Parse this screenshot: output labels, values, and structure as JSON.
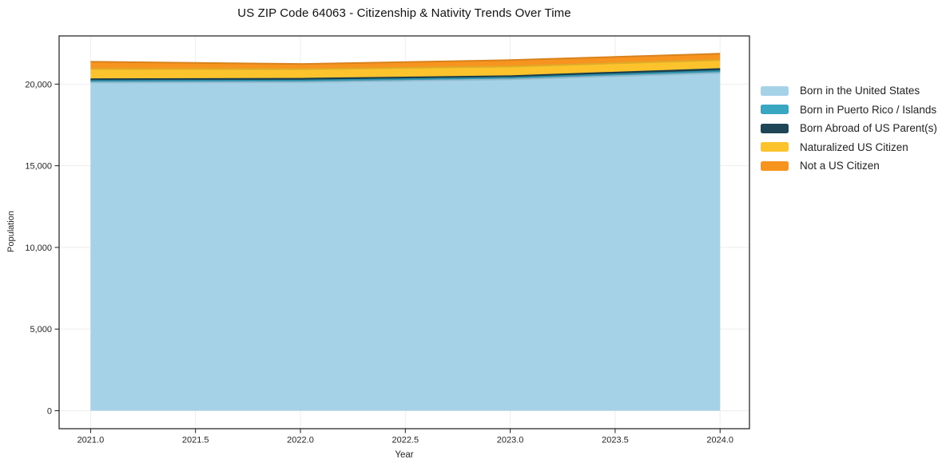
{
  "chart_data": {
    "type": "area",
    "stacked": true,
    "title": "US ZIP Code 64063 - Citizenship & Nativity Trends Over Time",
    "xlabel": "Year",
    "ylabel": "Population",
    "x": [
      2021,
      2022,
      2023,
      2024
    ],
    "series": [
      {
        "name": "Born in the United States",
        "color": "#a6d2e8",
        "values": [
          20100,
          20120,
          20295,
          20685
        ]
      },
      {
        "name": "Born in Puerto Rico / Islands",
        "color": "#39a6c2",
        "values": [
          100,
          100,
          95,
          115
        ]
      },
      {
        "name": "Born Abroad of US Parent(s)",
        "color": "#1e4656",
        "values": [
          100,
          110,
          100,
          130
        ]
      },
      {
        "name": "Naturalized US Citizen",
        "color": "#fcc32d",
        "values": [
          630,
          585,
          585,
          540
        ]
      },
      {
        "name": "Not a US Citizen",
        "color": "#f79420",
        "values": [
          440,
          315,
          395,
          390
        ]
      }
    ],
    "xticks": {
      "values": [
        2021.0,
        2021.5,
        2022.0,
        2022.5,
        2023.0,
        2023.5,
        2024.0
      ],
      "labels": [
        "2021.0",
        "2021.5",
        "2022.0",
        "2022.5",
        "2023.0",
        "2023.5",
        "2024.0"
      ]
    },
    "yticks": {
      "values": [
        0,
        5000,
        10000,
        15000,
        20000
      ],
      "labels": [
        "0",
        "5,000",
        "10,000",
        "15,000",
        "20,000"
      ]
    },
    "xlim": [
      2020.85,
      2024.14
    ],
    "ylim": [
      -1100,
      22950
    ],
    "grid": true,
    "legend_position": "right"
  },
  "colors": {
    "spine": "#1a1a1a",
    "grid": "#ededed",
    "tick_text": "#262626"
  }
}
